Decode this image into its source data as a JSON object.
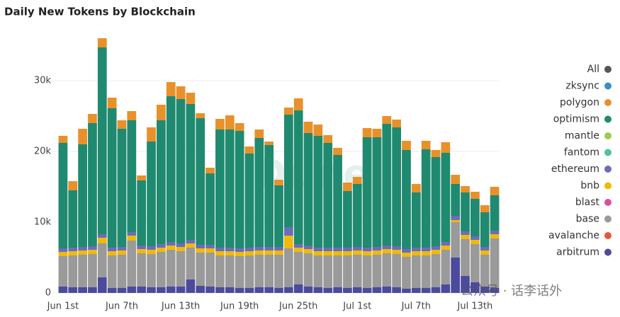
{
  "chart_data": {
    "type": "stacked_bar",
    "title": "Daily New Tokens by Blockchain",
    "watermark": "Dune",
    "footer_watermark": "公众号 · 话李话外",
    "legend_all": {
      "name": "All",
      "color": "#555555"
    },
    "categories": [
      "Jun 1st",
      null,
      null,
      null,
      null,
      null,
      "Jun 7th",
      null,
      null,
      null,
      null,
      null,
      "Jun 13th",
      null,
      null,
      null,
      null,
      null,
      "Jun 19th",
      null,
      null,
      null,
      null,
      null,
      "Jun 25th",
      null,
      null,
      null,
      null,
      null,
      "Jul 1st",
      null,
      null,
      null,
      null,
      null,
      "Jul 7th",
      null,
      null,
      null,
      null,
      null,
      "Jul 13th",
      null,
      null
    ],
    "ylim": [
      0,
      37000
    ],
    "yticks": [
      0,
      {
        "value": 10000,
        "label": "10k"
      },
      {
        "value": 20000,
        "label": "20k"
      },
      {
        "value": 30000,
        "label": "30k"
      }
    ],
    "grid": true,
    "series": [
      {
        "name": "arbitrum",
        "color": "#4c4a9d",
        "values": [
          900,
          800,
          800,
          800,
          2200,
          700,
          700,
          900,
          900,
          800,
          800,
          900,
          900,
          1900,
          1000,
          900,
          800,
          800,
          700,
          700,
          800,
          800,
          700,
          800,
          1200,
          900,
          800,
          700,
          800,
          700,
          800,
          700,
          800,
          900,
          800,
          600,
          700,
          700,
          800,
          1200,
          5000,
          2400,
          1500,
          900,
          700
        ]
      },
      {
        "name": "avalanche",
        "color": "#e8553f",
        "values": [
          0,
          0,
          0,
          0,
          0,
          0,
          0,
          0,
          0,
          0,
          0,
          0,
          0,
          0,
          0,
          0,
          0,
          0,
          0,
          0,
          0,
          0,
          0,
          0,
          0,
          0,
          0,
          0,
          0,
          0,
          0,
          0,
          0,
          0,
          0,
          0,
          0,
          0,
          0,
          0,
          0,
          0,
          0,
          0,
          0
        ]
      },
      {
        "name": "base",
        "color": "#9a9a9a",
        "values": [
          4300,
          4500,
          4600,
          4700,
          4800,
          4600,
          4700,
          6500,
          4700,
          4700,
          5000,
          5200,
          5000,
          4500,
          4700,
          4800,
          4500,
          4500,
          4500,
          4600,
          4600,
          4600,
          4700,
          5500,
          4600,
          4700,
          4500,
          4600,
          4500,
          4600,
          4600,
          4600,
          4600,
          4700,
          4700,
          4500,
          4600,
          4600,
          4700,
          4900,
          5000,
          5200,
          5400,
          4500,
          7000
        ]
      },
      {
        "name": "blast",
        "color": "#d94fa0",
        "values": [
          0,
          0,
          0,
          0,
          0,
          0,
          0,
          0,
          0,
          0,
          0,
          0,
          0,
          0,
          0,
          0,
          0,
          0,
          0,
          0,
          0,
          0,
          0,
          0,
          0,
          0,
          0,
          0,
          0,
          0,
          0,
          0,
          0,
          0,
          0,
          0,
          0,
          0,
          0,
          0,
          0,
          0,
          0,
          0,
          0
        ]
      },
      {
        "name": "bnb",
        "color": "#f0b90b",
        "values": [
          600,
          600,
          600,
          600,
          800,
          600,
          600,
          700,
          600,
          600,
          600,
          600,
          600,
          600,
          600,
          600,
          600,
          600,
          600,
          600,
          600,
          600,
          600,
          1800,
          600,
          600,
          600,
          600,
          600,
          600,
          600,
          600,
          600,
          600,
          600,
          600,
          600,
          600,
          600,
          600,
          300,
          600,
          600,
          600,
          600
        ]
      },
      {
        "name": "ethereum",
        "color": "#6b6db8",
        "values": [
          500,
          500,
          500,
          500,
          500,
          500,
          500,
          500,
          500,
          500,
          500,
          500,
          500,
          500,
          500,
          500,
          500,
          500,
          500,
          500,
          500,
          500,
          500,
          1200,
          500,
          500,
          500,
          500,
          500,
          500,
          500,
          500,
          500,
          500,
          500,
          500,
          500,
          500,
          500,
          500,
          600,
          500,
          500,
          500,
          500
        ]
      },
      {
        "name": "fantom",
        "color": "#4fc1a0",
        "values": [
          0,
          0,
          0,
          0,
          0,
          0,
          0,
          0,
          0,
          0,
          0,
          0,
          0,
          0,
          0,
          0,
          0,
          0,
          0,
          0,
          0,
          0,
          0,
          0,
          0,
          0,
          0,
          0,
          0,
          0,
          0,
          0,
          0,
          0,
          0,
          0,
          0,
          0,
          0,
          0,
          0,
          0,
          0,
          0,
          0
        ]
      },
      {
        "name": "mantle",
        "color": "#9acd4a",
        "values": [
          0,
          0,
          0,
          0,
          0,
          0,
          0,
          0,
          0,
          0,
          0,
          0,
          0,
          0,
          0,
          0,
          0,
          0,
          0,
          0,
          0,
          0,
          0,
          0,
          0,
          0,
          0,
          0,
          0,
          0,
          0,
          0,
          0,
          0,
          0,
          0,
          0,
          0,
          0,
          0,
          0,
          0,
          0,
          0,
          0
        ]
      },
      {
        "name": "optimism",
        "color": "#1f8a6f",
        "values": [
          14900,
          8100,
          14500,
          17400,
          26400,
          19700,
          16700,
          15800,
          9200,
          14800,
          17500,
          20600,
          20400,
          19200,
          17900,
          10100,
          16700,
          16700,
          16600,
          13300,
          15400,
          14400,
          8700,
          15900,
          18900,
          15900,
          15800,
          14800,
          13100,
          8000,
          8900,
          15600,
          15500,
          17200,
          16800,
          14000,
          7800,
          13900,
          12600,
          12600,
          4500,
          5500,
          5300,
          4900,
          5000
        ]
      },
      {
        "name": "polygon",
        "color": "#e8912a",
        "values": [
          1000,
          1300,
          2200,
          1300,
          1300,
          1500,
          1200,
          1300,
          700,
          2000,
          2200,
          2000,
          1800,
          1600,
          700,
          800,
          1500,
          2000,
          1100,
          1000,
          1200,
          500,
          800,
          1000,
          1700,
          1600,
          1600,
          1100,
          1000,
          1200,
          1000,
          1300,
          1200,
          1100,
          1100,
          1300,
          1200,
          1200,
          1000,
          1500,
          1300,
          900,
          1000,
          1000,
          1200
        ]
      },
      {
        "name": "zksync",
        "color": "#3b8fc4",
        "values": [
          0,
          0,
          0,
          0,
          0,
          0,
          0,
          0,
          0,
          0,
          0,
          0,
          0,
          0,
          0,
          0,
          0,
          0,
          0,
          0,
          0,
          0,
          0,
          0,
          0,
          0,
          0,
          0,
          0,
          0,
          0,
          0,
          0,
          0,
          0,
          0,
          0,
          0,
          0,
          0,
          0,
          0,
          0,
          0,
          0
        ]
      }
    ]
  }
}
